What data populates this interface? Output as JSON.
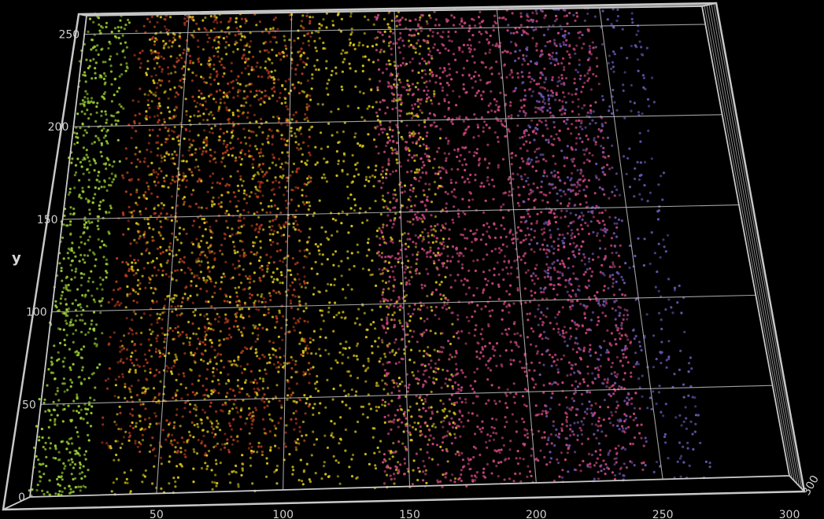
{
  "chart_data": {
    "type": "scatter",
    "title": "",
    "xlabel": "",
    "ylabel": "y",
    "zlabel": "",
    "x_ticks": [
      "50",
      "100",
      "150",
      "200",
      "250",
      "300"
    ],
    "y_ticks": [
      "0",
      "50",
      "100",
      "150",
      "200",
      "250"
    ],
    "z_ticks": [
      "300"
    ],
    "xlim": [
      0,
      300
    ],
    "ylim": [
      0,
      260
    ],
    "grid": true,
    "legend": "none",
    "projection": "3d",
    "series": [
      {
        "color": "#9acd32",
        "x_range": [
          0,
          22
        ],
        "y_range": [
          0,
          260
        ],
        "points": 700
      },
      {
        "color": "#b03a1e",
        "x_range": [
          25,
          110
        ],
        "y_range": [
          20,
          260
        ],
        "points": 1400
      },
      {
        "color": "#d4c21a",
        "x_range": [
          30,
          170
        ],
        "y_range": [
          0,
          260
        ],
        "points": 2000
      },
      {
        "color": "#c8467a",
        "x_range": [
          140,
          245
        ],
        "y_range": [
          0,
          260
        ],
        "points": 2400
      },
      {
        "color": "#6a55b0",
        "x_range": [
          205,
          270
        ],
        "y_range": [
          0,
          260
        ],
        "points": 700
      }
    ]
  }
}
